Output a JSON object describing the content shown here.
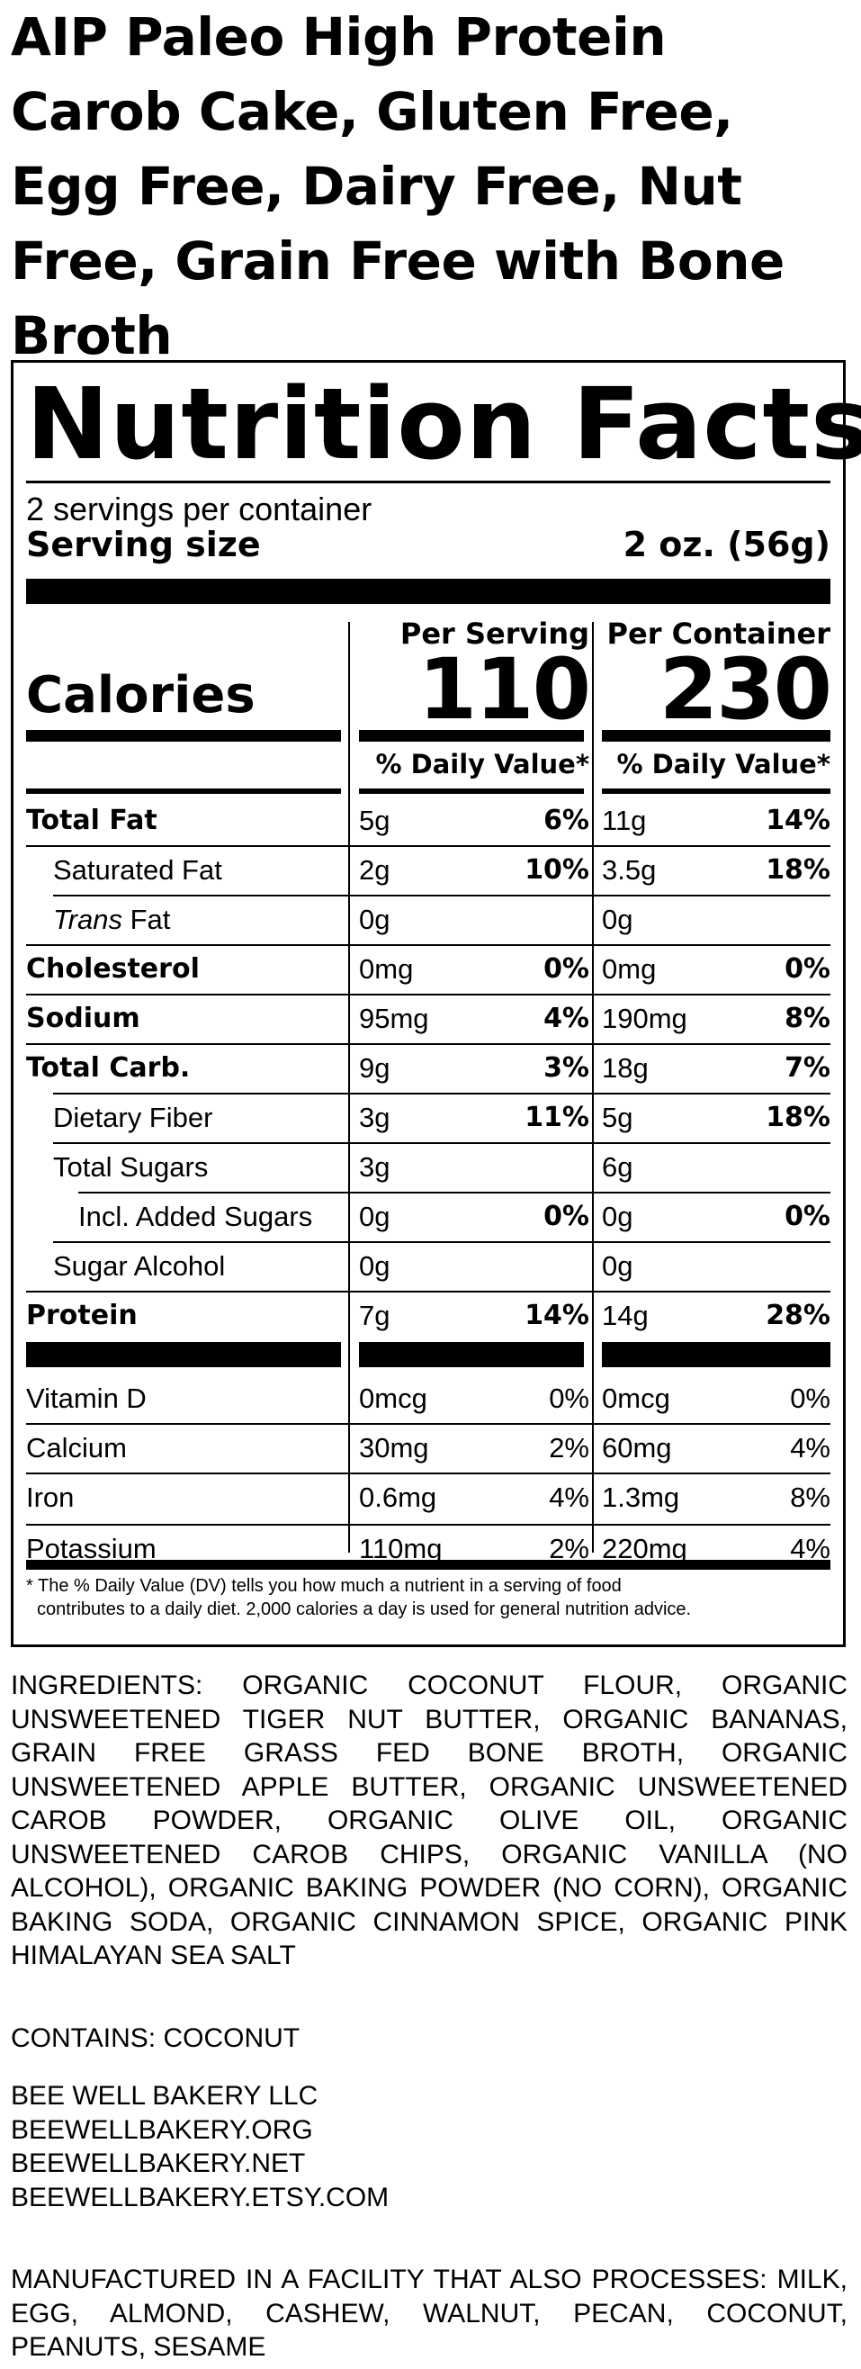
{
  "product": {
    "title": "AIP Paleo High Protein Carob Cake, Gluten Free, Egg Free, Dairy Free, Nut Free, Grain Free with Bone Broth"
  },
  "nutrition": {
    "title": "Nutrition Facts",
    "servings_per_container": "2 servings per container",
    "serving_size_label": "Serving size",
    "serving_size_value": "2 oz. (56g)",
    "col_per_serving": "Per Serving",
    "col_per_container": "Per Container",
    "calories_label": "Calories",
    "calories_per_serving": "110",
    "calories_per_container": "230",
    "dv_header": "% Daily Value*",
    "nutrients": [
      {
        "label": "Total Fat",
        "amt1": "5g",
        "pct1": "6%",
        "amt2": "11g",
        "pct2": "14%"
      },
      {
        "label": "Saturated Fat",
        "amt1": "2g",
        "pct1": "10%",
        "amt2": "3.5g",
        "pct2": "18%"
      },
      {
        "label_italic": "Trans",
        "label_rest": " Fat",
        "amt1": "0g",
        "pct1": "",
        "amt2": "0g",
        "pct2": ""
      },
      {
        "label": "Cholesterol",
        "amt1": "0mg",
        "pct1": "0%",
        "amt2": "0mg",
        "pct2": "0%"
      },
      {
        "label": "Sodium",
        "amt1": "95mg",
        "pct1": "4%",
        "amt2": "190mg",
        "pct2": "8%"
      },
      {
        "label": "Total Carb.",
        "amt1": "9g",
        "pct1": "3%",
        "amt2": "18g",
        "pct2": "7%"
      },
      {
        "label": "Dietary Fiber",
        "amt1": "3g",
        "pct1": "11%",
        "amt2": "5g",
        "pct2": "18%"
      },
      {
        "label": "Total Sugars",
        "amt1": "3g",
        "pct1": "",
        "amt2": "6g",
        "pct2": ""
      },
      {
        "label": "Incl. Added Sugars",
        "amt1": "0g",
        "pct1": "0%",
        "amt2": "0g",
        "pct2": "0%"
      },
      {
        "label": "Sugar Alcohol",
        "amt1": "0g",
        "pct1": "",
        "amt2": "0g",
        "pct2": ""
      },
      {
        "label": "Protein",
        "amt1": "7g",
        "pct1": "14%",
        "amt2": "14g",
        "pct2": "28%"
      }
    ],
    "vitamins": [
      {
        "label": "Vitamin D",
        "amt1": "0mcg",
        "pct1": "0%",
        "amt2": "0mcg",
        "pct2": "0%"
      },
      {
        "label": "Calcium",
        "amt1": "30mg",
        "pct1": "2%",
        "amt2": "60mg",
        "pct2": "4%"
      },
      {
        "label": "Iron",
        "amt1": "0.6mg",
        "pct1": "4%",
        "amt2": "1.3mg",
        "pct2": "8%"
      },
      {
        "label": "Potassium",
        "amt1": "110mg",
        "pct1": "2%",
        "amt2": "220mg",
        "pct2": "4%"
      }
    ],
    "footnote_line1": "* The % Daily Value (DV) tells you how much a nutrient in a serving of food",
    "footnote_line2": "contributes to a daily diet. 2,000 calories a day is used for general nutrition advice."
  },
  "ingredients": "INGREDIENTS: ORGANIC COCONUT FLOUR, ORGANIC UNSWEETENED TIGER NUT BUTTER, ORGANIC BANANAS, GRAIN FREE GRASS FED BONE BROTH, ORGANIC UNSWEETENED APPLE BUTTER, ORGANIC UNSWEETENED CAROB POWDER, ORGANIC OLIVE OIL, ORGANIC UNSWEETENED CAROB CHIPS, ORGANIC VANILLA (NO ALCOHOL), ORGANIC BAKING POWDER (NO CORN), ORGANIC BAKING SODA, ORGANIC CINNAMON SPICE, ORGANIC PINK HIMALAYAN SEA SALT",
  "contains": "CONTAINS: COCONUT",
  "company": {
    "name": "BEE WELL BAKERY LLC",
    "site_org": "BEEWELLBAKERY.ORG",
    "site_net": "BEEWELLBAKERY.NET",
    "site_etsy": "BEEWELLBAKERY.ETSY.COM"
  },
  "facility": "MANUFACTURED IN A FACILITY THAT ALSO PROCESSES: MILK, EGG, ALMOND, CASHEW, WALNUT, PECAN, COCONUT, PEANUTS, SESAME"
}
